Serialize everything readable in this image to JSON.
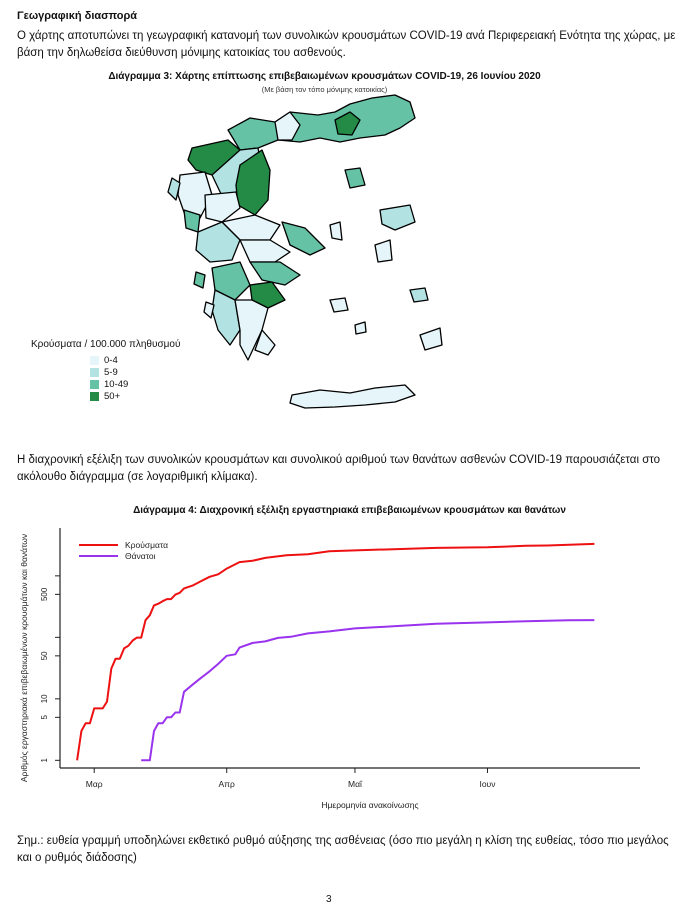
{
  "section_title": "Γεωγραφική διασπορά",
  "intro_paragraph": "Ο χάρτης αποτυπώνει τη γεωγραφική κατανομή των συνολικών κρουσμάτων COVID-19 ανά Περιφερειακή Ενότητα της χώρας, με βάση την δηλωθείσα διεύθυνση μόνιμης κατοικίας του ασθενούς.",
  "map": {
    "title": "Διάγραμμα 3: Χάρτης επίπτωσης επιβεβαιωμένων κρουσμάτων COVID-19, 26 Ιουνίου 2020",
    "subtitle": "(Με βάση τον τόπο μόνιμης κατοικίας)",
    "legend_title": "Κρούσματα / 100.000 πληθυσμού",
    "legend": [
      {
        "label": "0-4",
        "color": "#e5f5f9"
      },
      {
        "label": "5-9",
        "color": "#b2e2e2"
      },
      {
        "label": "10-49",
        "color": "#66c2a4"
      },
      {
        "label": "50+",
        "color": "#238b45"
      }
    ]
  },
  "chart_paragraph": "Η διαχρονική εξέλιξη των συνολικών κρουσμάτων και συνολικού αριθμού των θανάτων ασθενών COVID-19 παρουσιάζεται στο ακόλουθο διάγραμμα (σε λογαριθμική κλίμακα).",
  "chart_data": {
    "type": "line",
    "title": "Διάγραμμα 4: Διαχρονική εξέλιξη εργαστηριακά επιβεβαιωμένων κρουσμάτων και θανάτων",
    "xlabel": "Ημερομηνία ανακοίνωσης",
    "ylabel": "Αριθμός εργαστηριακά επιβεβαιωμένων κρουσμάτων και θανάτων",
    "y_scale": "log",
    "ylim": [
      0.75,
      6000
    ],
    "xlim": [
      "2020-02-22",
      "2020-07-02"
    ],
    "y_ticks": [
      1,
      5,
      10,
      50,
      100,
      500,
      1000
    ],
    "y_tick_labels": [
      "1",
      "5",
      "10",
      "50",
      "",
      "500",
      ""
    ],
    "x_ticks": [
      "2020-03-01",
      "2020-04-01",
      "2020-05-01",
      "2020-06-01"
    ],
    "x_tick_labels": [
      "Μαρ",
      "Απρ",
      "Μαΐ",
      "Ιουν"
    ],
    "legend_position": "top-left",
    "grid": false,
    "series": [
      {
        "name": "Κρούσματα",
        "color": "#ee1111",
        "points": [
          [
            "2020-02-26",
            1
          ],
          [
            "2020-02-27",
            3
          ],
          [
            "2020-02-28",
            4
          ],
          [
            "2020-02-29",
            4
          ],
          [
            "2020-03-01",
            7
          ],
          [
            "2020-03-03",
            7
          ],
          [
            "2020-03-04",
            9
          ],
          [
            "2020-03-05",
            31
          ],
          [
            "2020-03-06",
            45
          ],
          [
            "2020-03-07",
            45
          ],
          [
            "2020-03-08",
            66
          ],
          [
            "2020-03-09",
            73
          ],
          [
            "2020-03-10",
            89
          ],
          [
            "2020-03-11",
            99
          ],
          [
            "2020-03-12",
            99
          ],
          [
            "2020-03-13",
            190
          ],
          [
            "2020-03-14",
            228
          ],
          [
            "2020-03-15",
            331
          ],
          [
            "2020-03-16",
            352
          ],
          [
            "2020-03-17",
            387
          ],
          [
            "2020-03-18",
            418
          ],
          [
            "2020-03-19",
            418
          ],
          [
            "2020-03-20",
            495
          ],
          [
            "2020-03-21",
            530
          ],
          [
            "2020-03-22",
            624
          ],
          [
            "2020-03-24",
            695
          ],
          [
            "2020-03-26",
            821
          ],
          [
            "2020-03-28",
            966
          ],
          [
            "2020-03-30",
            1061
          ],
          [
            "2020-04-01",
            1314
          ],
          [
            "2020-04-04",
            1673
          ],
          [
            "2020-04-07",
            1755
          ],
          [
            "2020-04-10",
            1955
          ],
          [
            "2020-04-15",
            2170
          ],
          [
            "2020-04-20",
            2245
          ],
          [
            "2020-04-25",
            2506
          ],
          [
            "2020-05-01",
            2591
          ],
          [
            "2020-05-10",
            2710
          ],
          [
            "2020-05-20",
            2850
          ],
          [
            "2020-05-25",
            2878
          ],
          [
            "2020-05-27",
            2892
          ],
          [
            "2020-06-01",
            2917
          ],
          [
            "2020-06-10",
            3083
          ],
          [
            "2020-06-15",
            3121
          ],
          [
            "2020-06-26",
            3302
          ]
        ]
      },
      {
        "name": "Θάνατοι",
        "color": "#9933ee",
        "points": [
          [
            "2020-03-12",
            1
          ],
          [
            "2020-03-14",
            1
          ],
          [
            "2020-03-15",
            3
          ],
          [
            "2020-03-16",
            4
          ],
          [
            "2020-03-17",
            4
          ],
          [
            "2020-03-18",
            5
          ],
          [
            "2020-03-19",
            5
          ],
          [
            "2020-03-20",
            6
          ],
          [
            "2020-03-21",
            6
          ],
          [
            "2020-03-22",
            13
          ],
          [
            "2020-03-24",
            17
          ],
          [
            "2020-03-26",
            22
          ],
          [
            "2020-03-28",
            28
          ],
          [
            "2020-03-30",
            37
          ],
          [
            "2020-04-01",
            50
          ],
          [
            "2020-04-03",
            53
          ],
          [
            "2020-04-04",
            68
          ],
          [
            "2020-04-07",
            81
          ],
          [
            "2020-04-10",
            86
          ],
          [
            "2020-04-13",
            98
          ],
          [
            "2020-04-16",
            102
          ],
          [
            "2020-04-20",
            116
          ],
          [
            "2020-04-25",
            125
          ],
          [
            "2020-05-01",
            140
          ],
          [
            "2020-05-10",
            151
          ],
          [
            "2020-05-20",
            166
          ],
          [
            "2020-06-01",
            175
          ],
          [
            "2020-06-10",
            183
          ],
          [
            "2020-06-20",
            190
          ],
          [
            "2020-06-26",
            191
          ]
        ]
      }
    ]
  },
  "note": "Σημ.: ευθεία γραμμή υποδηλώνει εκθετικό ρυθμό αύξησης της ασθένειας (όσο πιο μεγάλη η κλίση της ευθείας, τόσο πιο μεγάλος και ο ρυθμός διάδοσης)",
  "page_number": "3"
}
